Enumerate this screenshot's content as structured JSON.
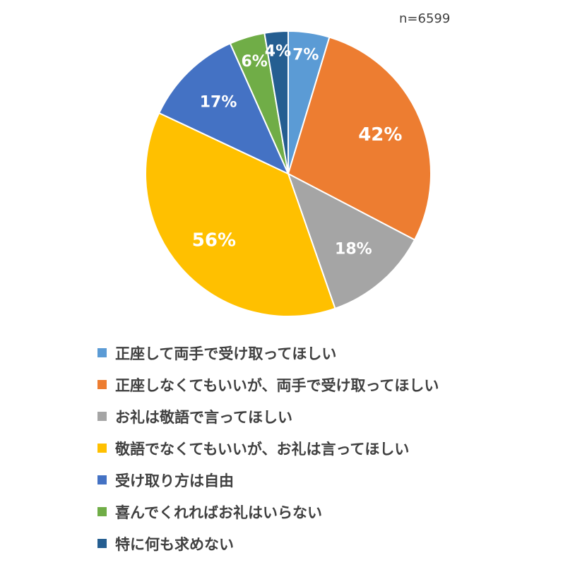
{
  "chart_data": {
    "type": "pie",
    "annotation": "n=6599",
    "slices": [
      {
        "label": "正座して両手で受け取ってほしい",
        "value": 7,
        "value_label": "7%",
        "color": "#5B9BD5"
      },
      {
        "label": "正座しなくてもいいが、両手で受け取ってほしい",
        "value": 42,
        "value_label": "42%",
        "color": "#ED7D31"
      },
      {
        "label": "お礼は敬語で言ってほしい",
        "value": 18,
        "value_label": "18%",
        "color": "#A5A5A5"
      },
      {
        "label": "敬語でなくてもいいが、お礼は言ってほしい",
        "value": 56,
        "value_label": "56%",
        "color": "#FFC000"
      },
      {
        "label": "受け取り方は自由",
        "value": 17,
        "value_label": "17%",
        "color": "#4472C4"
      },
      {
        "label": "喜んでくれればお礼はいらない",
        "value": 6,
        "value_label": "6%",
        "color": "#70AD47"
      },
      {
        "label": "特に何も求めない",
        "value": 4,
        "value_label": "4%",
        "color": "#255E91"
      }
    ],
    "legend_position": "bottom-left"
  }
}
